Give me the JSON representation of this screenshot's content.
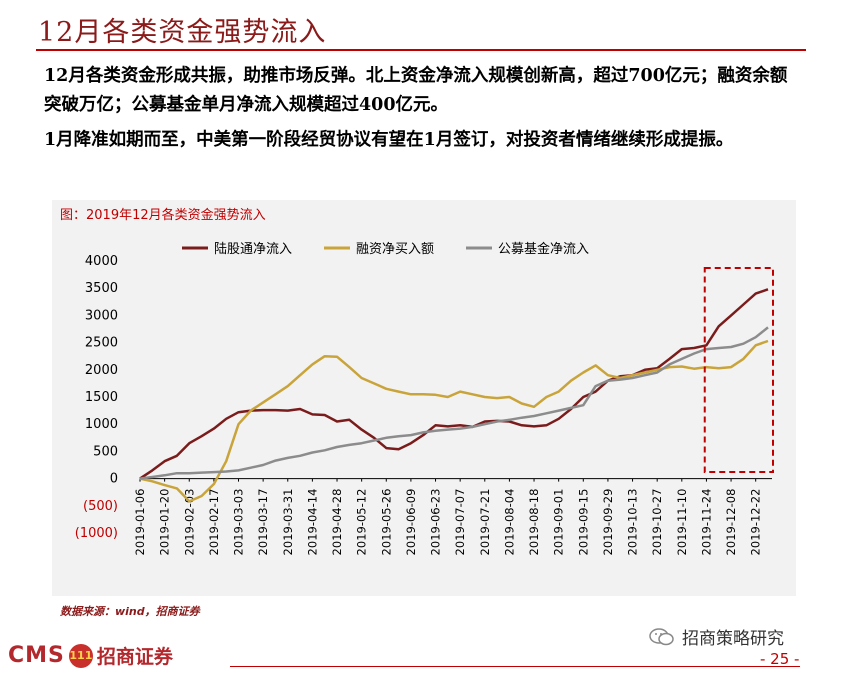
{
  "page": {
    "title": "12月各类资金强势流入",
    "paragraph1": "12月各类资金形成共振，助推市场反弹。北上资金净流入规模创新高，超过700亿元；融资余额突破万亿；公募基金单月净流入规模超过400亿元。",
    "paragraph2": "1月降准如期而至，中美第一阶段经贸协议有望在1月签订，对投资者情绪继续形成提振。",
    "source": "数据来源：wind，招商证券",
    "logo_text": "CMS",
    "logo_badge": "111",
    "logo_cn": "招商证券",
    "wechat_name": "招商策略研究",
    "page_number": "- 25 -"
  },
  "colors": {
    "northbound": "#7b1c1c",
    "margin": "#c9a43b",
    "fund": "#8c8c8c",
    "highlight_box": "#c00000"
  },
  "chart_data": {
    "type": "line",
    "caption": "图：2019年12月各类资金强势流入",
    "ylim": [
      -1000,
      4000
    ],
    "yticks": [
      -1000,
      -500,
      0,
      500,
      1000,
      1500,
      2000,
      2500,
      3000,
      3500,
      4000
    ],
    "ytick_labels": [
      "(1000)",
      "(500)",
      "0",
      "500",
      "1000",
      "1500",
      "2000",
      "2500",
      "3000",
      "3500",
      "4000"
    ],
    "legend_position": "top",
    "x_labels": [
      "2019-01-06",
      "2019-01-20",
      "2019-02-03",
      "2019-02-17",
      "2019-03-03",
      "2019-03-17",
      "2019-03-31",
      "2019-04-14",
      "2019-04-28",
      "2019-05-12",
      "2019-05-26",
      "2019-06-09",
      "2019-06-23",
      "2019-07-07",
      "2019-07-21",
      "2019-08-04",
      "2019-08-18",
      "2019-09-01",
      "2019-09-15",
      "2019-09-29",
      "2019-10-13",
      "2019-10-27",
      "2019-11-10",
      "2019-11-24",
      "2019-12-08",
      "2019-12-22"
    ],
    "x": [
      "2019-01-06",
      "2019-01-13",
      "2019-01-20",
      "2019-01-27",
      "2019-02-03",
      "2019-02-10",
      "2019-02-17",
      "2019-02-24",
      "2019-03-03",
      "2019-03-10",
      "2019-03-17",
      "2019-03-24",
      "2019-03-31",
      "2019-04-07",
      "2019-04-14",
      "2019-04-21",
      "2019-04-28",
      "2019-05-05",
      "2019-05-12",
      "2019-05-19",
      "2019-05-26",
      "2019-06-02",
      "2019-06-09",
      "2019-06-16",
      "2019-06-23",
      "2019-06-30",
      "2019-07-07",
      "2019-07-14",
      "2019-07-21",
      "2019-07-28",
      "2019-08-04",
      "2019-08-11",
      "2019-08-18",
      "2019-08-25",
      "2019-09-01",
      "2019-09-08",
      "2019-09-15",
      "2019-09-22",
      "2019-09-29",
      "2019-10-06",
      "2019-10-13",
      "2019-10-20",
      "2019-10-27",
      "2019-11-03",
      "2019-11-10",
      "2019-11-17",
      "2019-11-24",
      "2019-12-01",
      "2019-12-08",
      "2019-12-15",
      "2019-12-22",
      "2019-12-29"
    ],
    "series": [
      {
        "name": "陆股通净流入",
        "color": "#7b1c1c",
        "values": [
          0,
          150,
          320,
          420,
          650,
          780,
          920,
          1100,
          1220,
          1250,
          1260,
          1260,
          1250,
          1280,
          1180,
          1170,
          1050,
          1080,
          900,
          750,
          560,
          540,
          650,
          800,
          980,
          960,
          980,
          950,
          1050,
          1060,
          1050,
          980,
          960,
          980,
          1100,
          1280,
          1500,
          1600,
          1800,
          1880,
          1900,
          2000,
          2030,
          2200,
          2380,
          2400,
          2450,
          2800,
          3000,
          3200,
          3400,
          3480
        ]
      },
      {
        "name": "融资净买入额",
        "color": "#c9a43b",
        "values": [
          0,
          -50,
          -120,
          -180,
          -420,
          -320,
          -100,
          320,
          1000,
          1250,
          1400,
          1550,
          1700,
          1900,
          2100,
          2250,
          2240,
          2050,
          1850,
          1750,
          1650,
          1600,
          1550,
          1550,
          1540,
          1500,
          1600,
          1550,
          1500,
          1480,
          1500,
          1380,
          1320,
          1500,
          1600,
          1800,
          1950,
          2080,
          1900,
          1850,
          1900,
          1950,
          2000,
          2050,
          2060,
          2020,
          2050,
          2030,
          2050,
          2200,
          2450,
          2530
        ]
      },
      {
        "name": "公募基金净流入",
        "color": "#8c8c8c",
        "values": [
          0,
          30,
          60,
          100,
          100,
          110,
          120,
          130,
          150,
          200,
          250,
          330,
          380,
          420,
          480,
          520,
          580,
          620,
          650,
          700,
          750,
          780,
          800,
          850,
          880,
          900,
          920,
          950,
          1000,
          1050,
          1080,
          1120,
          1150,
          1200,
          1250,
          1300,
          1350,
          1700,
          1800,
          1820,
          1850,
          1900,
          1950,
          2100,
          2200,
          2300,
          2380,
          2400,
          2420,
          2480,
          2600,
          2780
        ]
      }
    ],
    "highlight_range": [
      "2019-12-01",
      "2019-12-29"
    ]
  }
}
